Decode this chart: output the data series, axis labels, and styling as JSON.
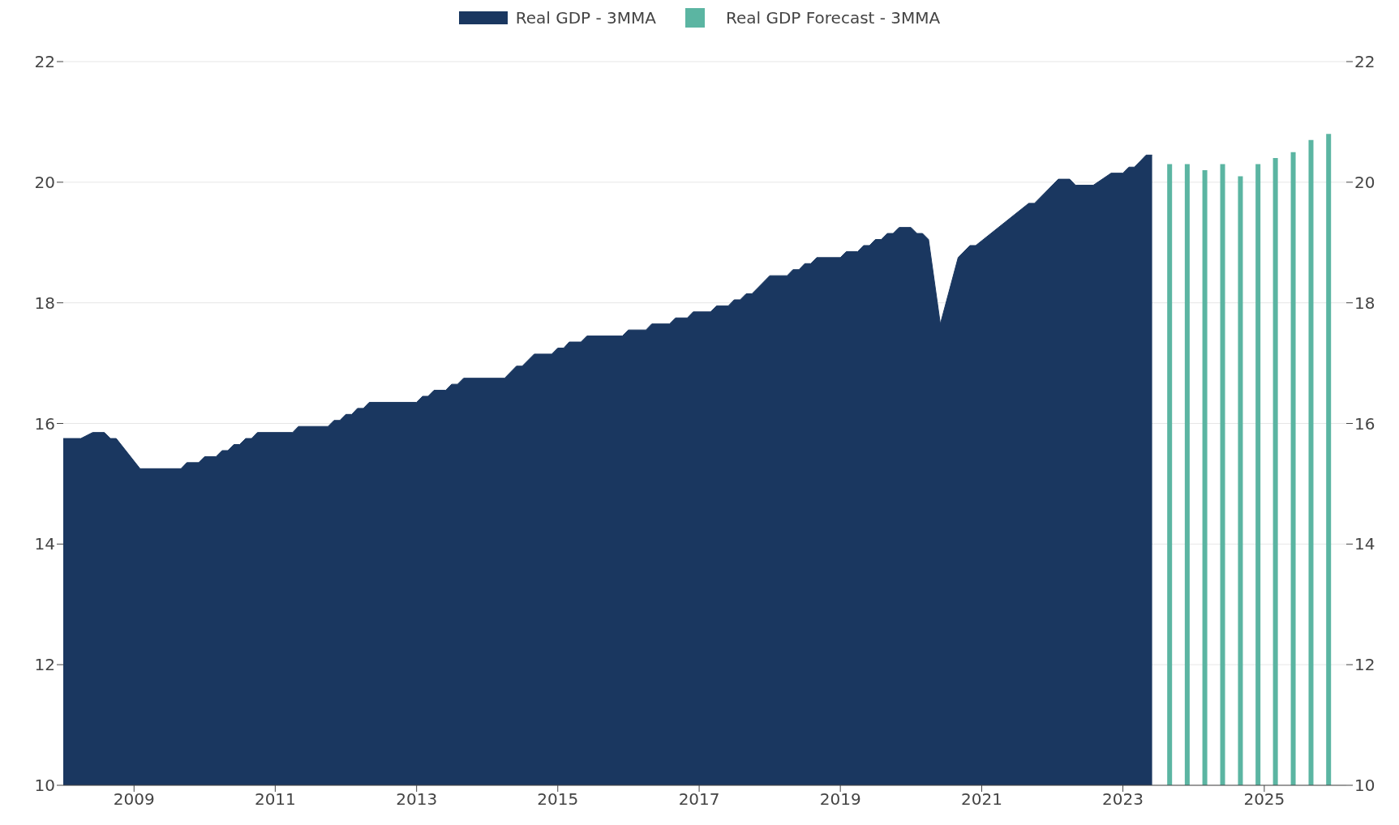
{
  "chart_data": {
    "type": "area",
    "legend": "top",
    "grid": "y",
    "xlim": [
      "2008-01",
      "2026-03"
    ],
    "xticks": [
      "2009",
      "2011",
      "2013",
      "2015",
      "2017",
      "2019",
      "2021",
      "2023",
      "2025"
    ],
    "ylim": [
      10,
      22
    ],
    "yticks": [
      10,
      12,
      14,
      16,
      18,
      20,
      22
    ],
    "y2lim": [
      10,
      22
    ],
    "y2ticks": [
      10,
      12,
      14,
      16,
      18,
      20,
      22
    ],
    "series": [
      {
        "name": "Real GDP - 3MMA",
        "color": "#1a3760",
        "x": [
          "2008-01",
          "2008-04",
          "2008-06",
          "2008-08",
          "2008-09",
          "2008-10",
          "2009-02",
          "2009-09",
          "2009-10",
          "2009-12",
          "2010-01",
          "2010-03",
          "2010-04",
          "2010-05",
          "2010-06",
          "2010-07",
          "2010-08",
          "2010-09",
          "2010-10",
          "2011-04",
          "2011-05",
          "2011-10",
          "2011-11",
          "2011-12",
          "2012-01",
          "2012-02",
          "2012-03",
          "2012-04",
          "2012-05",
          "2013-01",
          "2013-02",
          "2013-03",
          "2013-04",
          "2013-06",
          "2013-07",
          "2013-08",
          "2013-09",
          "2014-04",
          "2014-06",
          "2014-07",
          "2014-09",
          "2014-12",
          "2015-01",
          "2015-02",
          "2015-03",
          "2015-05",
          "2015-06",
          "2015-12",
          "2016-01",
          "2016-04",
          "2016-05",
          "2016-08",
          "2016-09",
          "2016-11",
          "2016-12",
          "2017-03",
          "2017-04",
          "2017-06",
          "2017-07",
          "2017-08",
          "2017-09",
          "2017-10",
          "2017-11",
          "2018-01",
          "2018-04",
          "2018-05",
          "2018-06",
          "2018-07",
          "2018-08",
          "2018-09",
          "2019-01",
          "2019-02",
          "2019-04",
          "2019-05",
          "2019-06",
          "2019-07",
          "2019-08",
          "2019-09",
          "2019-10",
          "2019-11",
          "2020-01",
          "2020-02",
          "2020-03",
          "2020-04",
          "2020-06",
          "2020-09",
          "2020-11",
          "2020-12",
          "2021-09",
          "2021-10",
          "2022-02",
          "2022-04",
          "2022-05",
          "2022-08",
          "2022-11",
          "2023-01",
          "2023-02",
          "2023-03",
          "2023-04",
          "2023-05",
          "2023-06"
        ],
        "values": [
          15.75,
          15.75,
          15.85,
          15.85,
          15.75,
          15.75,
          15.25,
          15.25,
          15.35,
          15.35,
          15.45,
          15.45,
          15.55,
          15.55,
          15.65,
          15.65,
          15.75,
          15.75,
          15.85,
          15.85,
          15.95,
          15.95,
          16.05,
          16.05,
          16.15,
          16.15,
          16.25,
          16.25,
          16.35,
          16.35,
          16.45,
          16.45,
          16.55,
          16.55,
          16.65,
          16.65,
          16.75,
          16.75,
          16.95,
          16.95,
          17.15,
          17.15,
          17.25,
          17.25,
          17.35,
          17.35,
          17.45,
          17.45,
          17.55,
          17.55,
          17.65,
          17.65,
          17.75,
          17.75,
          17.85,
          17.85,
          17.95,
          17.95,
          18.05,
          18.05,
          18.15,
          18.15,
          18.25,
          18.45,
          18.45,
          18.55,
          18.55,
          18.65,
          18.65,
          18.75,
          18.75,
          18.85,
          18.85,
          18.95,
          18.95,
          19.05,
          19.05,
          19.15,
          19.15,
          19.25,
          19.25,
          19.15,
          19.15,
          19.05,
          17.65,
          18.75,
          18.95,
          18.95,
          19.65,
          19.65,
          20.05,
          20.05,
          19.95,
          19.95,
          20.15,
          20.15,
          20.25,
          20.25,
          20.35,
          20.45,
          20.45
        ]
      },
      {
        "name": "Real GDP Forecast - 3MMA",
        "type": "bar",
        "color": "#5bb5a2",
        "x": [
          "2023-09",
          "2023-12",
          "2024-03",
          "2024-06",
          "2024-09",
          "2024-12",
          "2025-03",
          "2025-06",
          "2025-09",
          "2025-12"
        ],
        "values": [
          20.3,
          20.3,
          20.2,
          20.3,
          20.1,
          20.3,
          20.4,
          20.5,
          20.7,
          20.8
        ]
      }
    ]
  }
}
